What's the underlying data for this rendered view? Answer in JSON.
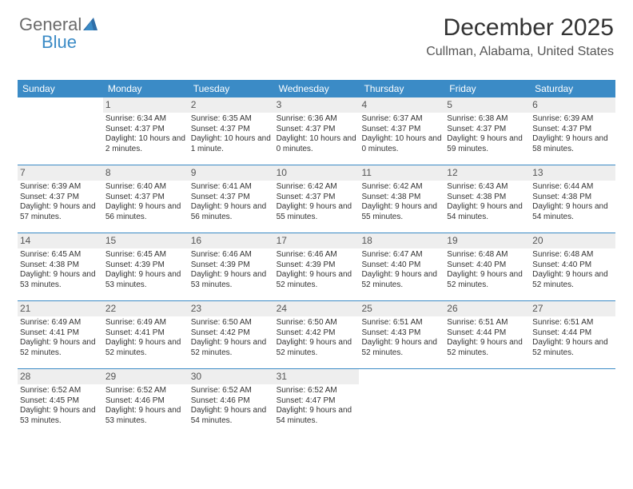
{
  "logo": {
    "word1": "General",
    "word2": "Blue"
  },
  "title": {
    "month": "December 2025",
    "location": "Cullman, Alabama, United States"
  },
  "day_header": {
    "bg": "#3b8bc6",
    "fg": "#ffffff",
    "fontsize": 12,
    "days": [
      "Sunday",
      "Monday",
      "Tuesday",
      "Wednesday",
      "Thursday",
      "Friday",
      "Saturday"
    ]
  },
  "styling": {
    "week_border_color": "#3b8bc6",
    "daynum_bg": "#eeeeee",
    "body_fontsize": 10,
    "title_fontsize": 30,
    "location_fontsize": 16
  },
  "weeks": [
    [
      {
        "empty": true
      },
      {
        "n": "1",
        "sunrise": "Sunrise: 6:34 AM",
        "sunset": "Sunset: 4:37 PM",
        "daylight": "Daylight: 10 hours and 2 minutes."
      },
      {
        "n": "2",
        "sunrise": "Sunrise: 6:35 AM",
        "sunset": "Sunset: 4:37 PM",
        "daylight": "Daylight: 10 hours and 1 minute."
      },
      {
        "n": "3",
        "sunrise": "Sunrise: 6:36 AM",
        "sunset": "Sunset: 4:37 PM",
        "daylight": "Daylight: 10 hours and 0 minutes."
      },
      {
        "n": "4",
        "sunrise": "Sunrise: 6:37 AM",
        "sunset": "Sunset: 4:37 PM",
        "daylight": "Daylight: 10 hours and 0 minutes."
      },
      {
        "n": "5",
        "sunrise": "Sunrise: 6:38 AM",
        "sunset": "Sunset: 4:37 PM",
        "daylight": "Daylight: 9 hours and 59 minutes."
      },
      {
        "n": "6",
        "sunrise": "Sunrise: 6:39 AM",
        "sunset": "Sunset: 4:37 PM",
        "daylight": "Daylight: 9 hours and 58 minutes."
      }
    ],
    [
      {
        "n": "7",
        "sunrise": "Sunrise: 6:39 AM",
        "sunset": "Sunset: 4:37 PM",
        "daylight": "Daylight: 9 hours and 57 minutes."
      },
      {
        "n": "8",
        "sunrise": "Sunrise: 6:40 AM",
        "sunset": "Sunset: 4:37 PM",
        "daylight": "Daylight: 9 hours and 56 minutes."
      },
      {
        "n": "9",
        "sunrise": "Sunrise: 6:41 AM",
        "sunset": "Sunset: 4:37 PM",
        "daylight": "Daylight: 9 hours and 56 minutes."
      },
      {
        "n": "10",
        "sunrise": "Sunrise: 6:42 AM",
        "sunset": "Sunset: 4:37 PM",
        "daylight": "Daylight: 9 hours and 55 minutes."
      },
      {
        "n": "11",
        "sunrise": "Sunrise: 6:42 AM",
        "sunset": "Sunset: 4:38 PM",
        "daylight": "Daylight: 9 hours and 55 minutes."
      },
      {
        "n": "12",
        "sunrise": "Sunrise: 6:43 AM",
        "sunset": "Sunset: 4:38 PM",
        "daylight": "Daylight: 9 hours and 54 minutes."
      },
      {
        "n": "13",
        "sunrise": "Sunrise: 6:44 AM",
        "sunset": "Sunset: 4:38 PM",
        "daylight": "Daylight: 9 hours and 54 minutes."
      }
    ],
    [
      {
        "n": "14",
        "sunrise": "Sunrise: 6:45 AM",
        "sunset": "Sunset: 4:38 PM",
        "daylight": "Daylight: 9 hours and 53 minutes."
      },
      {
        "n": "15",
        "sunrise": "Sunrise: 6:45 AM",
        "sunset": "Sunset: 4:39 PM",
        "daylight": "Daylight: 9 hours and 53 minutes."
      },
      {
        "n": "16",
        "sunrise": "Sunrise: 6:46 AM",
        "sunset": "Sunset: 4:39 PM",
        "daylight": "Daylight: 9 hours and 53 minutes."
      },
      {
        "n": "17",
        "sunrise": "Sunrise: 6:46 AM",
        "sunset": "Sunset: 4:39 PM",
        "daylight": "Daylight: 9 hours and 52 minutes."
      },
      {
        "n": "18",
        "sunrise": "Sunrise: 6:47 AM",
        "sunset": "Sunset: 4:40 PM",
        "daylight": "Daylight: 9 hours and 52 minutes."
      },
      {
        "n": "19",
        "sunrise": "Sunrise: 6:48 AM",
        "sunset": "Sunset: 4:40 PM",
        "daylight": "Daylight: 9 hours and 52 minutes."
      },
      {
        "n": "20",
        "sunrise": "Sunrise: 6:48 AM",
        "sunset": "Sunset: 4:40 PM",
        "daylight": "Daylight: 9 hours and 52 minutes."
      }
    ],
    [
      {
        "n": "21",
        "sunrise": "Sunrise: 6:49 AM",
        "sunset": "Sunset: 4:41 PM",
        "daylight": "Daylight: 9 hours and 52 minutes."
      },
      {
        "n": "22",
        "sunrise": "Sunrise: 6:49 AM",
        "sunset": "Sunset: 4:41 PM",
        "daylight": "Daylight: 9 hours and 52 minutes."
      },
      {
        "n": "23",
        "sunrise": "Sunrise: 6:50 AM",
        "sunset": "Sunset: 4:42 PM",
        "daylight": "Daylight: 9 hours and 52 minutes."
      },
      {
        "n": "24",
        "sunrise": "Sunrise: 6:50 AM",
        "sunset": "Sunset: 4:42 PM",
        "daylight": "Daylight: 9 hours and 52 minutes."
      },
      {
        "n": "25",
        "sunrise": "Sunrise: 6:51 AM",
        "sunset": "Sunset: 4:43 PM",
        "daylight": "Daylight: 9 hours and 52 minutes."
      },
      {
        "n": "26",
        "sunrise": "Sunrise: 6:51 AM",
        "sunset": "Sunset: 4:44 PM",
        "daylight": "Daylight: 9 hours and 52 minutes."
      },
      {
        "n": "27",
        "sunrise": "Sunrise: 6:51 AM",
        "sunset": "Sunset: 4:44 PM",
        "daylight": "Daylight: 9 hours and 52 minutes."
      }
    ],
    [
      {
        "n": "28",
        "sunrise": "Sunrise: 6:52 AM",
        "sunset": "Sunset: 4:45 PM",
        "daylight": "Daylight: 9 hours and 53 minutes."
      },
      {
        "n": "29",
        "sunrise": "Sunrise: 6:52 AM",
        "sunset": "Sunset: 4:46 PM",
        "daylight": "Daylight: 9 hours and 53 minutes."
      },
      {
        "n": "30",
        "sunrise": "Sunrise: 6:52 AM",
        "sunset": "Sunset: 4:46 PM",
        "daylight": "Daylight: 9 hours and 54 minutes."
      },
      {
        "n": "31",
        "sunrise": "Sunrise: 6:52 AM",
        "sunset": "Sunset: 4:47 PM",
        "daylight": "Daylight: 9 hours and 54 minutes."
      },
      {
        "empty": true
      },
      {
        "empty": true
      },
      {
        "empty": true
      }
    ]
  ]
}
